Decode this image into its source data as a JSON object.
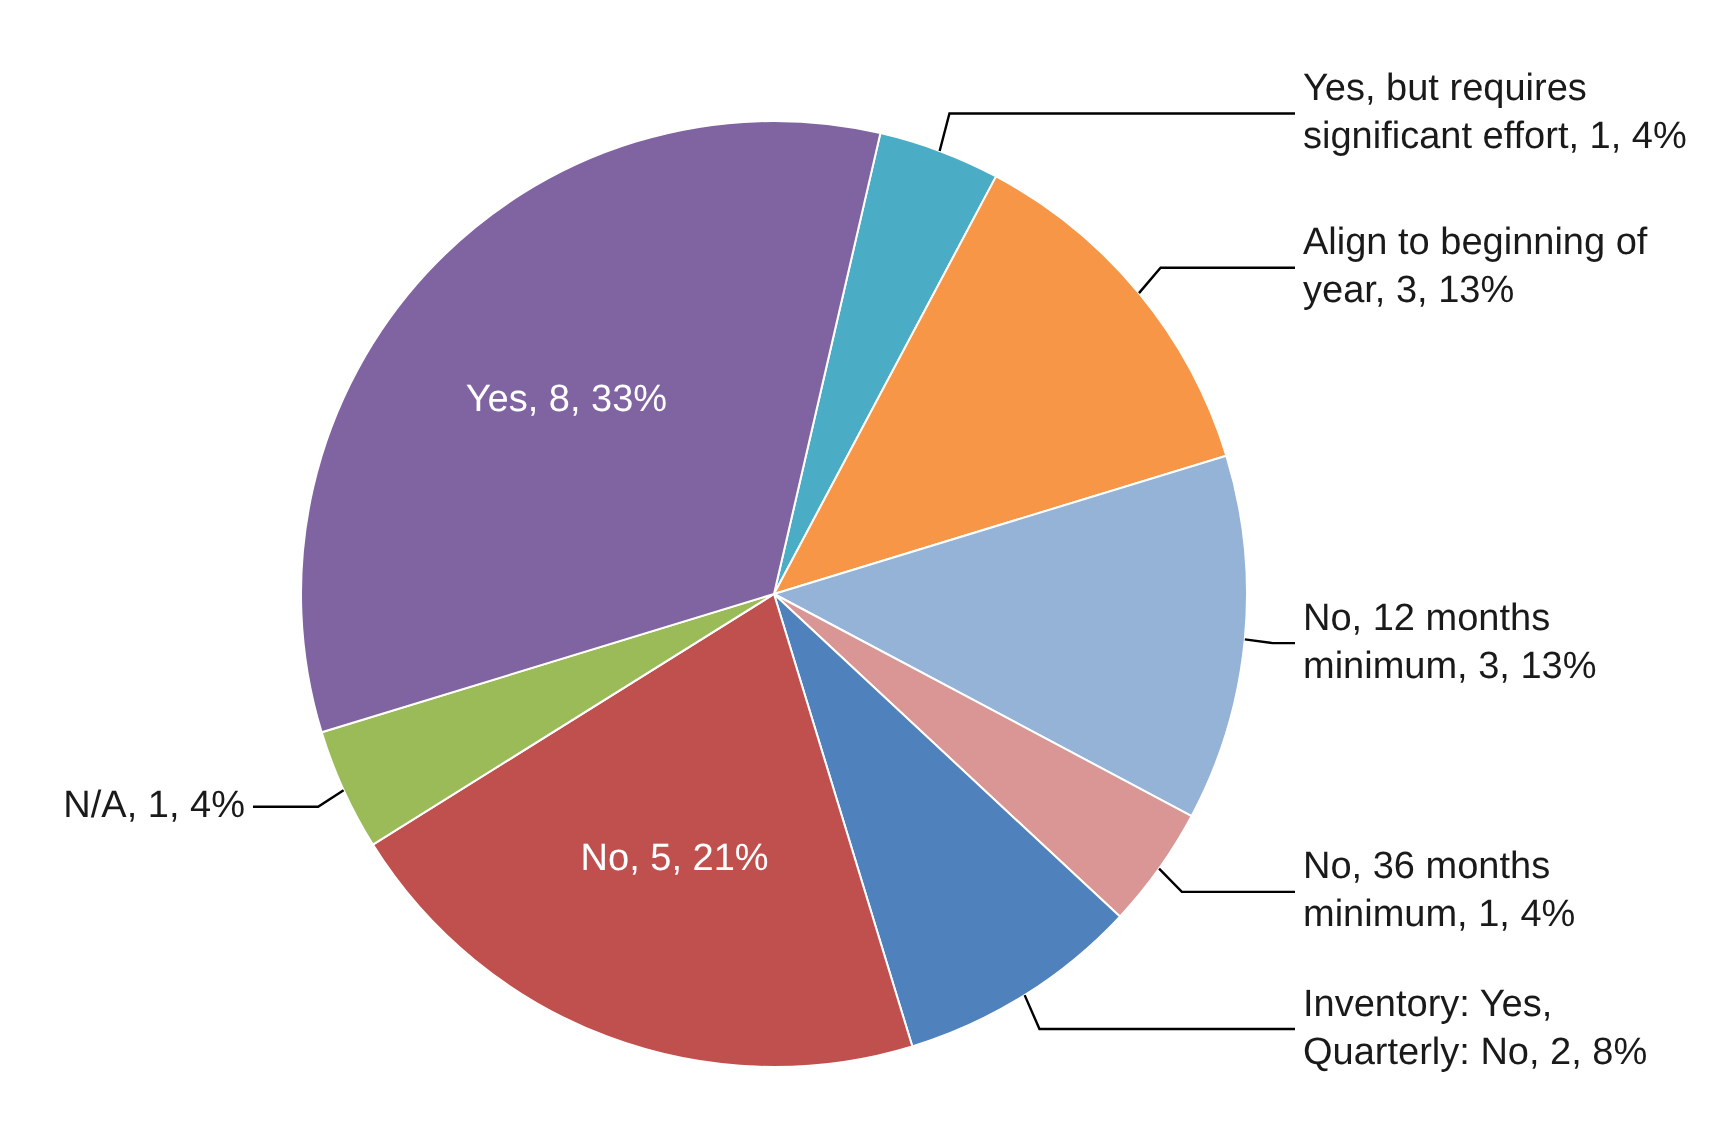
{
  "chart_data": {
    "type": "pie",
    "categories": [
      "Yes, but requires significant effort",
      "Align to beginning of year",
      "No, 12 months minimum",
      "No, 36 months minimum",
      "Inventory: Yes, Quarterly: No",
      "No",
      "N/A",
      "Yes"
    ],
    "values": [
      1,
      3,
      3,
      1,
      2,
      5,
      1,
      8
    ],
    "colors": [
      "#4bacc6",
      "#f79646",
      "#95b3d7",
      "#d99694",
      "#4f81bd",
      "#c0504d",
      "#9bbb59",
      "#8064a2"
    ],
    "value_labels": [
      "1, 4%",
      "3, 13%",
      "3, 13%",
      "1, 4%",
      "2, 8%",
      "5, 21%",
      "1, 4%",
      "8, 33%"
    ]
  }
}
